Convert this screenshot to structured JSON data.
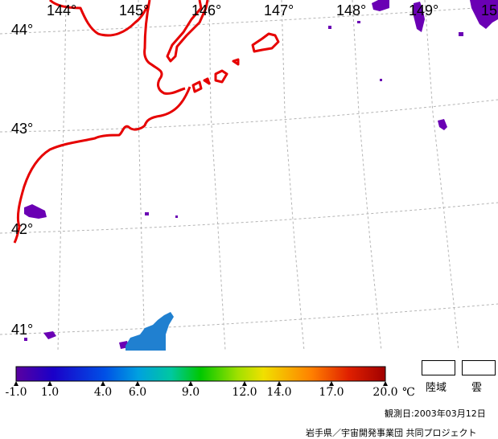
{
  "longitudes": [
    "144°",
    "145°",
    "146°",
    "147°",
    "148°",
    "149°",
    "15"
  ],
  "latitudes": [
    "44°",
    "43°",
    "42°",
    "41°"
  ],
  "colorbar": {
    "ticks": [
      "-1.0",
      "1.0",
      "4.0",
      "6.0",
      "9.0",
      "12.0",
      "14.0",
      "17.0",
      "20.0"
    ],
    "unit": "℃",
    "colors": [
      "#5a00a0",
      "#1a00c8",
      "#0050e6",
      "#00a0e0",
      "#00c8a0",
      "#00c800",
      "#a0e000",
      "#f0e000",
      "#ff8000",
      "#e02000",
      "#a00000"
    ]
  },
  "legend": {
    "land": "陸域",
    "cloud": "雲"
  },
  "observation": "観測日:2003年03月12日",
  "credit": "岩手県／宇宙開発事業団 共同プロジェクト",
  "colors": {
    "coast": "#e60000",
    "grid": "#b4b4b4",
    "cloud_pixels": "#6a00b4",
    "sst_pixels": "#2080d0"
  }
}
